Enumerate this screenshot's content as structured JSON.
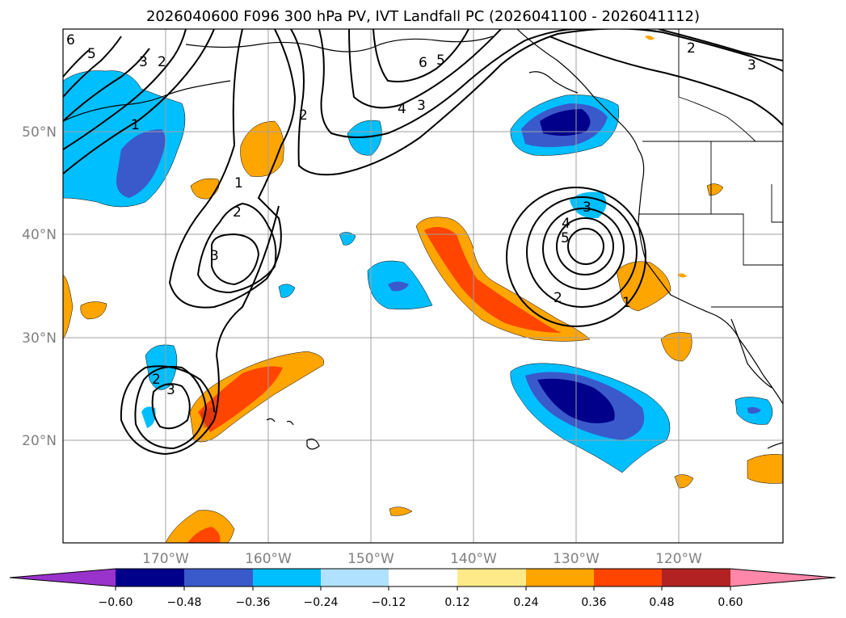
{
  "title": "2026040600 F096 300 hPa PV, IVT Landfall PC (2026041100 - 2026041112)",
  "map": {
    "lon_range": [
      -180,
      -110
    ],
    "lat_range": [
      10,
      60
    ],
    "lon_ticks": [
      {
        "value": -170,
        "label": "170°W"
      },
      {
        "value": -160,
        "label": "160°W"
      },
      {
        "value": -150,
        "label": "150°W"
      },
      {
        "value": -140,
        "label": "140°W"
      },
      {
        "value": -130,
        "label": "130°W"
      },
      {
        "value": -120,
        "label": "120°W"
      }
    ],
    "lat_ticks": [
      {
        "value": 20,
        "label": "20°N"
      },
      {
        "value": 30,
        "label": "30°N"
      },
      {
        "value": 40,
        "label": "40°N"
      },
      {
        "value": 50,
        "label": "50°N"
      }
    ],
    "pv_contour_labels": [
      "1",
      "2",
      "3",
      "4",
      "5",
      "6"
    ]
  },
  "colorbar": {
    "colors": [
      "#9933cc",
      "#00008b",
      "#3a5acc",
      "#00bfff",
      "#b0e2ff",
      "#ffffff",
      "#ffea8a",
      "#ffa500",
      "#ff4500",
      "#b22222",
      "#ff88aa"
    ],
    "ticks": [
      "−0.60",
      "−0.48",
      "−0.36",
      "−0.24",
      "−0.12",
      "0.12",
      "0.24",
      "0.36",
      "0.48",
      "0.60"
    ]
  }
}
